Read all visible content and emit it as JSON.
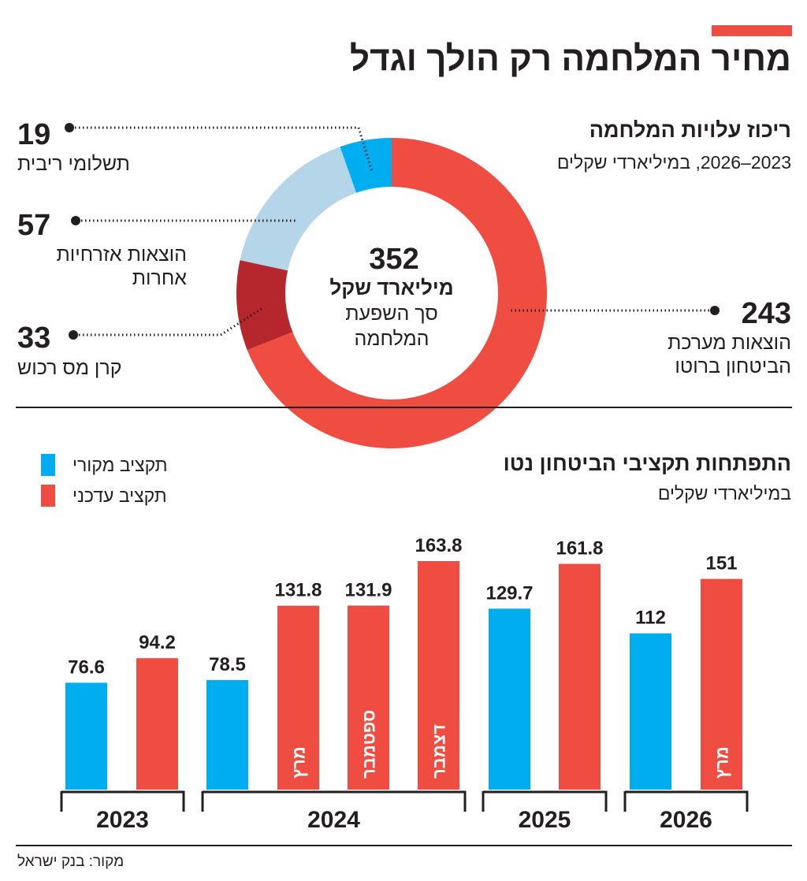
{
  "title": "מחיר המלחמה רק הולך וגדל",
  "donut": {
    "heading": "ריכוז עלויות המלחמה",
    "subheading": "2023–2026, במיליארדי שקלים",
    "center_value": "352",
    "center_unit": "מיליארד שקל",
    "center_caption_1": "סך השפעת",
    "center_caption_2": "המלחמה"
  },
  "bars": {
    "heading": "התפתחות תקציבי הביטחון נטו",
    "subheading": "במיליארדי שקלים",
    "legend": [
      {
        "label": "תקציב מקורי",
        "color": "#00aeef"
      },
      {
        "label": "תקציב עדכני",
        "color": "#ef4d42"
      }
    ]
  },
  "source": "מקור: בנק ישראל",
  "chart_data": [
    {
      "type": "pie",
      "title": "ריכוז עלויות המלחמה",
      "total": 352,
      "slices": [
        {
          "label": "הוצאות מערכת הביטחון ברוטו",
          "value": 243,
          "display": "243",
          "color": "#ef4d42"
        },
        {
          "label": "קרן מס רכוש",
          "value": 33,
          "display": "33",
          "color": "#b5262d"
        },
        {
          "label": "הוצאות אזרחיות אחרות",
          "value": 57,
          "display": "57",
          "color": "#b4d6e8"
        },
        {
          "label": "תשלומי ריבית",
          "value": 19,
          "display": "19",
          "color": "#00aeef"
        }
      ]
    },
    {
      "type": "bar",
      "title": "התפתחות תקציבי הביטחון נטו",
      "ylabel": "במיליארדי שקלים",
      "ylim": [
        0,
        170
      ],
      "groups": [
        {
          "year": "2023",
          "bars": [
            {
              "series": "תקציב מקורי",
              "value": 76.6,
              "display": "76.6",
              "label": ""
            },
            {
              "series": "תקציב עדכני",
              "value": 94.2,
              "display": "94.2",
              "label": ""
            }
          ]
        },
        {
          "year": "2024",
          "bars": [
            {
              "series": "תקציב מקורי",
              "value": 78.5,
              "display": "78.5",
              "label": ""
            },
            {
              "series": "תקציב עדכני",
              "value": 131.8,
              "display": "131.8",
              "label": "מרץ"
            },
            {
              "series": "תקציב עדכני",
              "value": 131.9,
              "display": "131.9",
              "label": "ספטמבר"
            },
            {
              "series": "תקציב עדכני",
              "value": 163.8,
              "display": "163.8",
              "label": "דצמבר"
            }
          ]
        },
        {
          "year": "2025",
          "bars": [
            {
              "series": "תקציב מקורי",
              "value": 129.7,
              "display": "129.7",
              "label": ""
            },
            {
              "series": "תקציב עדכני",
              "value": 161.8,
              "display": "161.8",
              "label": ""
            }
          ]
        },
        {
          "year": "2026",
          "bars": [
            {
              "series": "תקציב מקורי",
              "value": 112,
              "display": "112",
              "label": ""
            },
            {
              "series": "תקציב עדכני",
              "value": 151,
              "display": "151",
              "label": "מרץ"
            }
          ]
        }
      ]
    }
  ]
}
